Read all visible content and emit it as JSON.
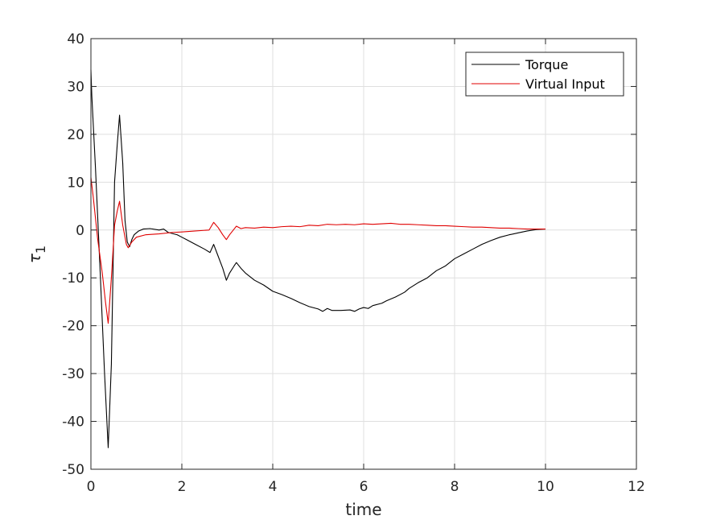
{
  "chart_data": {
    "type": "line",
    "title": "",
    "xlabel": "time",
    "ylabel": "τ",
    "ylabel_subscript": "1",
    "xlim": [
      0,
      12
    ],
    "ylim": [
      -50,
      40
    ],
    "xticks": [
      0,
      2,
      4,
      6,
      8,
      10,
      12
    ],
    "yticks": [
      -50,
      -40,
      -30,
      -20,
      -10,
      0,
      10,
      20,
      30,
      40
    ],
    "grid": true,
    "legend_position": "top-right",
    "series": [
      {
        "name": "Torque",
        "color": "#000000",
        "points": [
          [
            0,
            33.5
          ],
          [
            0.02,
            28
          ],
          [
            0.1,
            13
          ],
          [
            0.2,
            -8
          ],
          [
            0.3,
            -30
          ],
          [
            0.38,
            -45.5
          ],
          [
            0.45,
            -28
          ],
          [
            0.52,
            10
          ],
          [
            0.58,
            18
          ],
          [
            0.63,
            24
          ],
          [
            0.7,
            14
          ],
          [
            0.75,
            2
          ],
          [
            0.8,
            -2.5
          ],
          [
            0.85,
            -3.5
          ],
          [
            0.9,
            -2
          ],
          [
            0.95,
            -1
          ],
          [
            1.05,
            -0.2
          ],
          [
            1.15,
            0.2
          ],
          [
            1.3,
            0.3
          ],
          [
            1.5,
            0
          ],
          [
            1.6,
            0.2
          ],
          [
            1.7,
            -0.5
          ],
          [
            1.9,
            -1
          ],
          [
            2.0,
            -1.5
          ],
          [
            2.1,
            -2
          ],
          [
            2.3,
            -3
          ],
          [
            2.5,
            -4
          ],
          [
            2.62,
            -4.7
          ],
          [
            2.7,
            -3
          ],
          [
            2.78,
            -5
          ],
          [
            2.9,
            -8
          ],
          [
            2.98,
            -10.5
          ],
          [
            3.05,
            -9
          ],
          [
            3.15,
            -7.5
          ],
          [
            3.2,
            -6.8
          ],
          [
            3.3,
            -8
          ],
          [
            3.4,
            -9
          ],
          [
            3.6,
            -10.5
          ],
          [
            3.8,
            -11.5
          ],
          [
            4.0,
            -12.8
          ],
          [
            4.2,
            -13.5
          ],
          [
            4.4,
            -14.3
          ],
          [
            4.6,
            -15.2
          ],
          [
            4.8,
            -16
          ],
          [
            5.0,
            -16.5
          ],
          [
            5.1,
            -17
          ],
          [
            5.2,
            -16.4
          ],
          [
            5.3,
            -16.8
          ],
          [
            5.5,
            -16.8
          ],
          [
            5.7,
            -16.7
          ],
          [
            5.8,
            -17
          ],
          [
            5.9,
            -16.5
          ],
          [
            6.0,
            -16.2
          ],
          [
            6.1,
            -16.4
          ],
          [
            6.2,
            -15.8
          ],
          [
            6.4,
            -15.3
          ],
          [
            6.5,
            -14.8
          ],
          [
            6.7,
            -14
          ],
          [
            6.9,
            -13
          ],
          [
            7.0,
            -12.2
          ],
          [
            7.2,
            -11
          ],
          [
            7.4,
            -10
          ],
          [
            7.6,
            -8.5
          ],
          [
            7.8,
            -7.5
          ],
          [
            8.0,
            -6
          ],
          [
            8.2,
            -5
          ],
          [
            8.4,
            -4
          ],
          [
            8.6,
            -3
          ],
          [
            8.8,
            -2.2
          ],
          [
            9.0,
            -1.5
          ],
          [
            9.2,
            -1
          ],
          [
            9.4,
            -0.6
          ],
          [
            9.6,
            -0.2
          ],
          [
            9.8,
            0.1
          ],
          [
            10.0,
            0.2
          ]
        ]
      },
      {
        "name": "Virtual Input",
        "color": "#e00000",
        "points": [
          [
            0,
            11
          ],
          [
            0.05,
            7
          ],
          [
            0.15,
            -2
          ],
          [
            0.25,
            -9
          ],
          [
            0.32,
            -15
          ],
          [
            0.38,
            -19.5
          ],
          [
            0.45,
            -10
          ],
          [
            0.52,
            1
          ],
          [
            0.58,
            4
          ],
          [
            0.63,
            6
          ],
          [
            0.7,
            1
          ],
          [
            0.78,
            -3
          ],
          [
            0.82,
            -3.7
          ],
          [
            0.9,
            -2.5
          ],
          [
            1.0,
            -1.5
          ],
          [
            1.2,
            -1
          ],
          [
            1.5,
            -0.8
          ],
          [
            1.8,
            -0.5
          ],
          [
            2.0,
            -0.4
          ],
          [
            2.3,
            -0.2
          ],
          [
            2.6,
            0
          ],
          [
            2.7,
            1.6
          ],
          [
            2.8,
            0.5
          ],
          [
            2.9,
            -1
          ],
          [
            2.98,
            -2
          ],
          [
            3.05,
            -1
          ],
          [
            3.15,
            0.2
          ],
          [
            3.2,
            0.8
          ],
          [
            3.3,
            0.3
          ],
          [
            3.4,
            0.5
          ],
          [
            3.6,
            0.4
          ],
          [
            3.8,
            0.6
          ],
          [
            4.0,
            0.5
          ],
          [
            4.2,
            0.7
          ],
          [
            4.4,
            0.8
          ],
          [
            4.6,
            0.7
          ],
          [
            4.8,
            1
          ],
          [
            5.0,
            0.9
          ],
          [
            5.2,
            1.2
          ],
          [
            5.4,
            1.1
          ],
          [
            5.6,
            1.2
          ],
          [
            5.8,
            1.1
          ],
          [
            6.0,
            1.3
          ],
          [
            6.2,
            1.2
          ],
          [
            6.4,
            1.3
          ],
          [
            6.6,
            1.4
          ],
          [
            6.8,
            1.2
          ],
          [
            7.0,
            1.2
          ],
          [
            7.2,
            1.1
          ],
          [
            7.4,
            1
          ],
          [
            7.6,
            0.9
          ],
          [
            7.8,
            0.9
          ],
          [
            8.0,
            0.8
          ],
          [
            8.2,
            0.7
          ],
          [
            8.4,
            0.6
          ],
          [
            8.6,
            0.6
          ],
          [
            8.8,
            0.5
          ],
          [
            9.0,
            0.4
          ],
          [
            9.2,
            0.4
          ],
          [
            9.4,
            0.3
          ],
          [
            9.6,
            0.2
          ],
          [
            9.8,
            0.2
          ],
          [
            10.0,
            0.2
          ]
        ]
      }
    ]
  }
}
